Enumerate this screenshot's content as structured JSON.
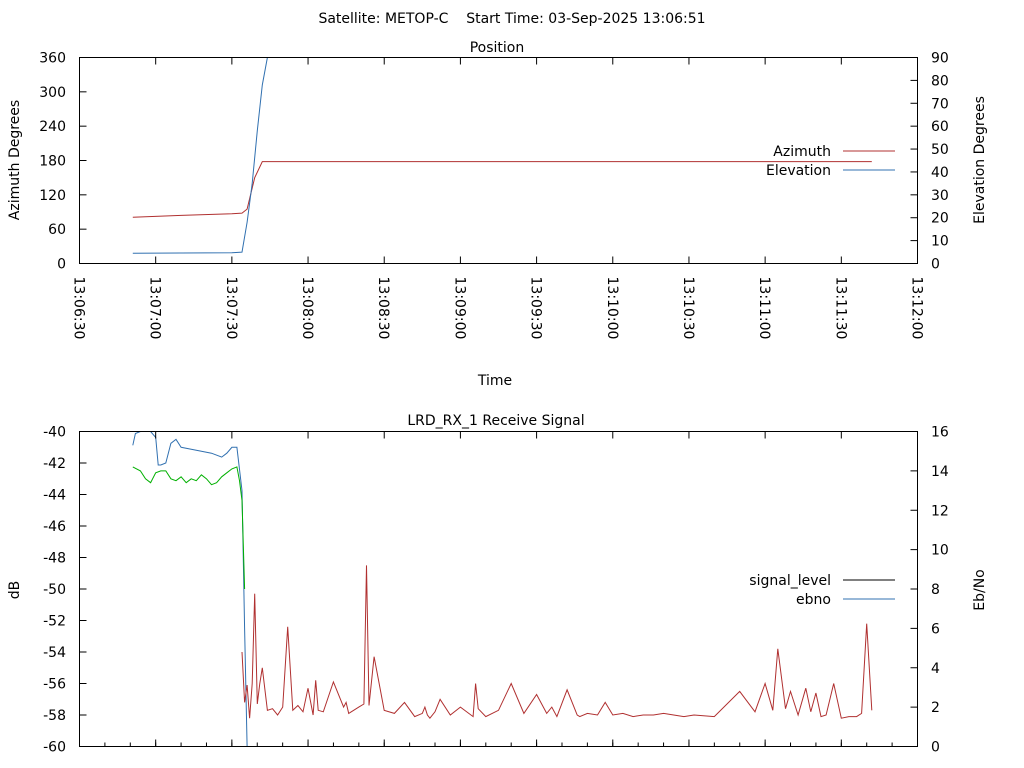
{
  "header": "Satellite: METOP-C    Start Time: 03-Sep-2025 13:06:51",
  "colors": {
    "azimuth": "#b03030",
    "elevation": "#3070b0",
    "signal_level": "#000000",
    "ebno": "#3070b0",
    "signal_trace": "#b03030",
    "quality_trace": "#00b000"
  },
  "chart_data": [
    {
      "type": "line",
      "title": "Position",
      "xlabel": "Time",
      "ylabel": "Azimuth Degrees",
      "y2label": "Elevation Degrees",
      "ylim": [
        0,
        360
      ],
      "y2lim": [
        0,
        90
      ],
      "xlim": [
        "13:06:30",
        "13:12:00"
      ],
      "yticks": [
        "0",
        "60",
        "120",
        "180",
        "240",
        "300",
        "360"
      ],
      "y2ticks": [
        "0",
        "10",
        "20",
        "30",
        "40",
        "50",
        "60",
        "70",
        "80",
        "90"
      ],
      "xticks": [
        "13:06:30",
        "13:07:00",
        "13:07:30",
        "13:08:00",
        "13:08:30",
        "13:09:00",
        "13:09:30",
        "13:10:00",
        "13:10:30",
        "13:11:00",
        "13:11:30",
        "13:12:00"
      ],
      "legend_position": "right",
      "series": [
        {
          "name": "Azimuth",
          "axis": "y",
          "x": [
            "13:06:51",
            "13:07:10",
            "13:07:30",
            "13:07:34",
            "13:07:36",
            "13:07:39",
            "13:07:42",
            "13:07:55",
            "13:08:30",
            "13:09:30",
            "13:10:30",
            "13:11:30",
            "13:11:42"
          ],
          "values": [
            81,
            84,
            87,
            88,
            95,
            150,
            178,
            178,
            178,
            178,
            178,
            178,
            178
          ]
        },
        {
          "name": "Elevation",
          "axis": "y2",
          "x": [
            "13:06:51",
            "13:07:10",
            "13:07:30",
            "13:07:34",
            "13:07:36",
            "13:07:38",
            "13:07:40",
            "13:07:42",
            "13:07:44"
          ],
          "values": [
            4.5,
            4.6,
            4.7,
            5,
            18,
            35,
            58,
            78,
            90
          ]
        }
      ]
    },
    {
      "type": "line",
      "title": "LRD_RX_1 Receive Signal",
      "ylabel": "dB",
      "y2label": "Eb/No",
      "ylim": [
        -60,
        -40
      ],
      "y2lim": [
        0,
        16
      ],
      "yticks": [
        "-60",
        "-58",
        "-56",
        "-54",
        "-52",
        "-50",
        "-48",
        "-46",
        "-44",
        "-42",
        "-40"
      ],
      "y2ticks": [
        "0",
        "2",
        "4",
        "6",
        "8",
        "10",
        "12",
        "14",
        "16"
      ],
      "xlim": [
        "13:06:30",
        "13:12:00"
      ],
      "legend_position": "right",
      "legend": [
        {
          "name": "signal_level",
          "color": "#000000"
        },
        {
          "name": "ebno",
          "color": "#3070b0"
        }
      ],
      "series": [
        {
          "axis": "y2",
          "color": "#3070b0",
          "x": [
            "13:06:51",
            "13:06:52",
            "13:06:54",
            "13:06:56",
            "13:06:58",
            "13:07:00",
            "13:07:01",
            "13:07:02",
            "13:07:04",
            "13:07:06",
            "13:07:08",
            "13:07:10",
            "13:07:14",
            "13:07:18",
            "13:07:22",
            "13:07:26",
            "13:07:28",
            "13:07:30",
            "13:07:32",
            "13:07:34",
            "13:07:35",
            "13:07:36"
          ],
          "values": [
            15.3,
            15.9,
            16.0,
            16.0,
            16.0,
            15.7,
            14.3,
            14.3,
            14.4,
            15.4,
            15.6,
            15.2,
            15.1,
            15.0,
            14.9,
            14.7,
            14.9,
            15.2,
            15.2,
            13.0,
            6.0,
            0
          ]
        },
        {
          "axis": "y2",
          "color": "#00b000",
          "x": [
            "13:06:51",
            "13:06:54",
            "13:06:56",
            "13:06:58",
            "13:07:00",
            "13:07:02",
            "13:07:04",
            "13:07:06",
            "13:07:08",
            "13:07:10",
            "13:07:12",
            "13:07:14",
            "13:07:16",
            "13:07:18",
            "13:07:20",
            "13:07:22",
            "13:07:24",
            "13:07:26",
            "13:07:28",
            "13:07:30",
            "13:07:32",
            "13:07:33",
            "13:07:34",
            "13:07:35"
          ],
          "values": [
            14.2,
            14.0,
            13.6,
            13.4,
            13.9,
            14.0,
            14.0,
            13.6,
            13.5,
            13.7,
            13.4,
            13.6,
            13.5,
            13.8,
            13.6,
            13.3,
            13.4,
            13.7,
            13.9,
            14.1,
            14.2,
            13.5,
            12.5,
            8.0
          ]
        },
        {
          "axis": "y",
          "color": "#b03030",
          "x": [
            "13:07:34",
            "13:07:35",
            "13:07:36",
            "13:07:37",
            "13:07:38",
            "13:07:39",
            "13:07:40",
            "13:07:41",
            "13:07:42",
            "13:07:44",
            "13:07:46",
            "13:07:48",
            "13:07:50",
            "13:07:52",
            "13:07:54",
            "13:07:56",
            "13:07:58",
            "13:08:00",
            "13:08:02",
            "13:08:03",
            "13:08:04",
            "13:08:06",
            "13:08:10",
            "13:08:14",
            "13:08:15",
            "13:08:16",
            "13:08:20",
            "13:08:22",
            "13:08:23",
            "13:08:24",
            "13:08:26",
            "13:08:30",
            "13:08:34",
            "13:08:38",
            "13:08:42",
            "13:08:45",
            "13:08:46",
            "13:08:47",
            "13:08:48",
            "13:08:50",
            "13:08:52",
            "13:08:56",
            "13:09:00",
            "13:09:05",
            "13:09:06",
            "13:09:07",
            "13:09:10",
            "13:09:15",
            "13:09:20",
            "13:09:25",
            "13:09:30",
            "13:09:34",
            "13:09:36",
            "13:09:38",
            "13:09:42",
            "13:09:46",
            "13:09:47",
            "13:09:50",
            "13:09:54",
            "13:09:57",
            "13:10:00",
            "13:10:04",
            "13:10:08",
            "13:10:12",
            "13:10:16",
            "13:10:20",
            "13:10:24",
            "13:10:28",
            "13:10:32",
            "13:10:40",
            "13:10:50",
            "13:10:56",
            "13:11:00",
            "13:11:03",
            "13:11:05",
            "13:11:08",
            "13:11:10",
            "13:11:13",
            "13:11:16",
            "13:11:18",
            "13:11:20",
            "13:11:22",
            "13:11:24",
            "13:11:27",
            "13:11:30",
            "13:11:33",
            "13:11:36",
            "13:11:38",
            "13:11:40",
            "13:11:42"
          ],
          "values": [
            -54.0,
            -57.2,
            -56.1,
            -58.2,
            -56.0,
            -50.3,
            -57.3,
            -56.0,
            -55.0,
            -57.7,
            -57.6,
            -58.0,
            -57.5,
            -52.4,
            -57.7,
            -57.4,
            -57.8,
            -56.3,
            -58.0,
            -55.8,
            -57.7,
            -57.8,
            -55.9,
            -57.5,
            -57.2,
            -57.9,
            -57.5,
            -57.3,
            -48.5,
            -57.4,
            -54.3,
            -57.7,
            -57.9,
            -57.2,
            -58.1,
            -57.9,
            -57.5,
            -58.0,
            -58.2,
            -57.8,
            -57.0,
            -58.0,
            -57.5,
            -58.1,
            -56.0,
            -57.6,
            -58.1,
            -57.7,
            -56.0,
            -57.9,
            -56.7,
            -57.9,
            -57.5,
            -58.1,
            -56.4,
            -58.0,
            -58.1,
            -57.9,
            -58.0,
            -57.2,
            -58.0,
            -57.9,
            -58.1,
            -58.0,
            -58.0,
            -57.9,
            -58.0,
            -58.1,
            -58.0,
            -58.1,
            -56.5,
            -57.8,
            -56.0,
            -57.7,
            -53.8,
            -57.6,
            -56.5,
            -58.0,
            -56.3,
            -57.8,
            -56.6,
            -58.1,
            -58.0,
            -56.0,
            -58.2,
            -58.1,
            -58.1,
            -57.9,
            -52.2,
            -57.7
          ]
        }
      ],
      "x_tick_count": 12
    }
  ]
}
